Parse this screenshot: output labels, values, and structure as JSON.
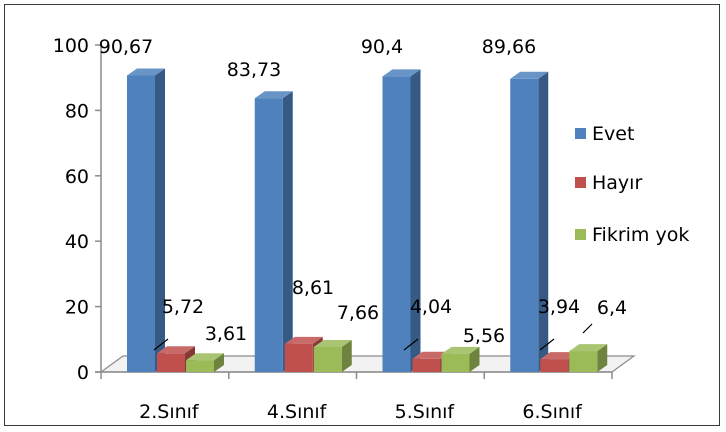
{
  "chart_data": {
    "type": "bar",
    "categories": [
      "2.Sınıf",
      "4.Sınıf",
      "5.Sınıf",
      "6.Sınıf"
    ],
    "series": [
      {
        "name": "Evet",
        "values": [
          90.67,
          83.73,
          90.4,
          89.66
        ],
        "labels": [
          "90,67",
          "83,73",
          "90,4",
          "89,66"
        ],
        "color": "#4f81bd"
      },
      {
        "name": "Hayır",
        "values": [
          5.72,
          8.61,
          4.04,
          3.94
        ],
        "labels": [
          "5,72",
          "8,61",
          "4,04",
          "3,94"
        ],
        "color": "#c0504d"
      },
      {
        "name": "Fikrim yok",
        "values": [
          3.61,
          7.66,
          5.56,
          6.4
        ],
        "labels": [
          "3,61",
          "7,66",
          "5,56",
          "6,4"
        ],
        "color": "#9bbb59"
      }
    ],
    "yticks": [
      "0",
      "20",
      "40",
      "60",
      "80",
      "100"
    ],
    "ylim": [
      0,
      100
    ],
    "style": "3d-column",
    "legend_position": "right",
    "grid": false
  }
}
